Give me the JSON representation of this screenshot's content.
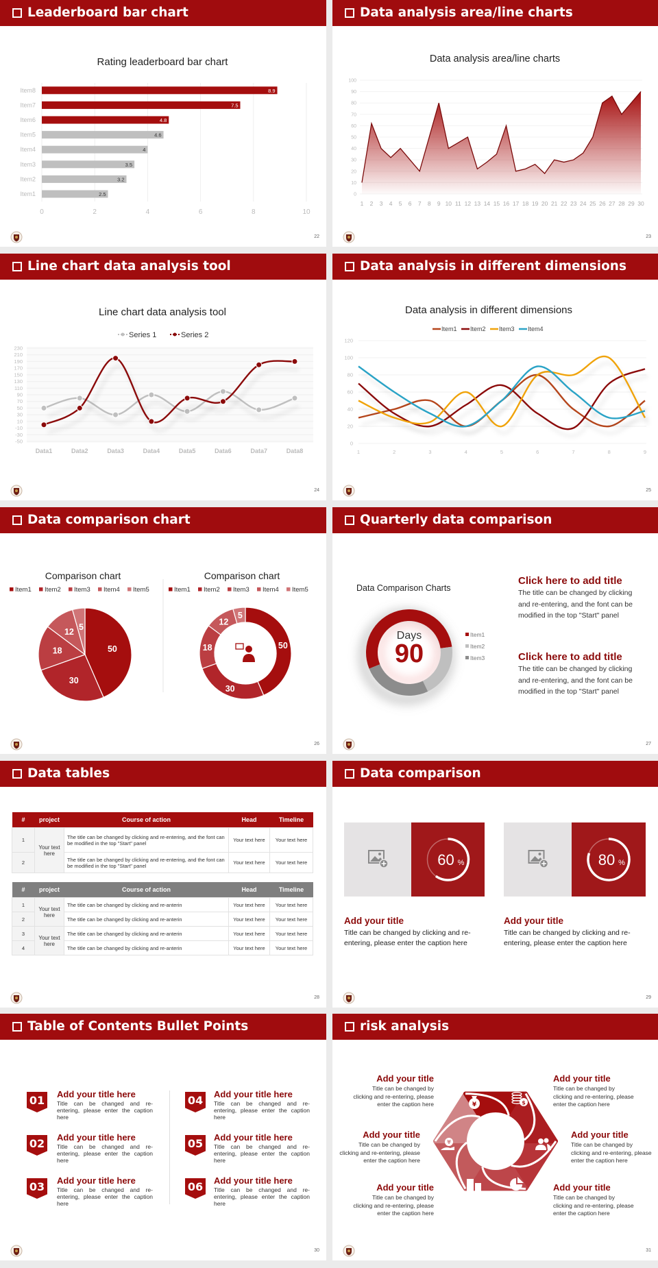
{
  "slides": [
    {
      "title": "Leaderboard bar chart",
      "page": "22"
    },
    {
      "title": "Data analysis area/line charts",
      "page": "23"
    },
    {
      "title": "Line chart data analysis tool",
      "page": "24"
    },
    {
      "title": "Data analysis in different dimensions",
      "page": "25"
    },
    {
      "title": "Data comparison chart",
      "page": "26"
    },
    {
      "title": "Quarterly data comparison",
      "page": "27"
    },
    {
      "title": "Data tables",
      "page": "28"
    },
    {
      "title": "Data comparison",
      "page": "29"
    },
    {
      "title": "Table of Contents Bullet Points",
      "page": "30"
    },
    {
      "title": "risk analysis",
      "page": "31"
    }
  ],
  "theme": {
    "accent": "#a00c0e",
    "dark_accent": "#8b0a0a",
    "gray": "#bfbfbf"
  },
  "chart_data": [
    {
      "type": "bar",
      "orientation": "horizontal",
      "title": "Rating leaderboard bar chart",
      "categories": [
        "Item1",
        "Item2",
        "Item3",
        "Item4",
        "Item5",
        "Item6",
        "Item7",
        "Item8"
      ],
      "values": [
        2.5,
        3.2,
        3.5,
        4,
        4.6,
        4.8,
        7.5,
        8.9
      ],
      "xlim": [
        0,
        10
      ],
      "xticks": [
        0,
        2,
        4,
        6,
        8,
        10
      ],
      "highlight_top": 3,
      "highlight_color": "#a50e0e",
      "base_color": "#bfbfbf",
      "grid": true
    },
    {
      "type": "area",
      "title": "Data analysis area/line charts",
      "x": [
        1,
        2,
        3,
        4,
        5,
        6,
        7,
        8,
        9,
        10,
        11,
        12,
        13,
        14,
        15,
        16,
        17,
        18,
        19,
        20,
        21,
        22,
        23,
        24,
        25,
        26,
        27,
        28,
        29,
        30
      ],
      "values": [
        10,
        62,
        40,
        32,
        40,
        30,
        20,
        50,
        80,
        40,
        45,
        50,
        22,
        28,
        35,
        60,
        20,
        22,
        26,
        18,
        30,
        28,
        30,
        36,
        50,
        80,
        86,
        70,
        80,
        90
      ],
      "ylim": [
        0,
        100
      ],
      "yticks": [
        0,
        10,
        20,
        30,
        40,
        50,
        60,
        70,
        80,
        90,
        100
      ],
      "color": "#a50e0e",
      "line_color": "#7a0a0a",
      "grid": true
    },
    {
      "type": "line",
      "smooth": true,
      "title": "Line chart data analysis tool",
      "categories": [
        "Data1",
        "Data2",
        "Data3",
        "Data4",
        "Data5",
        "Data6",
        "Data7",
        "Data8"
      ],
      "series": [
        {
          "name": "Series 1",
          "values": [
            50,
            80,
            30,
            90,
            40,
            100,
            45,
            80
          ],
          "color": "#bfbfbf"
        },
        {
          "name": "Series 2",
          "values": [
            0,
            50,
            200,
            10,
            80,
            70,
            180,
            190
          ],
          "color": "#8b0a0a"
        }
      ],
      "ylim": [
        -50,
        230
      ],
      "yticks": [
        -50,
        -30,
        -10,
        10,
        30,
        50,
        70,
        90,
        110,
        130,
        150,
        170,
        190,
        210,
        230
      ],
      "legend": "top",
      "grid": true
    },
    {
      "type": "line",
      "smooth": true,
      "title": "Data analysis in different dimensions",
      "x": [
        1,
        2,
        3,
        4,
        5,
        6,
        7,
        8,
        9
      ],
      "series": [
        {
          "name": "Item1",
          "values": [
            30,
            40,
            50,
            20,
            50,
            80,
            40,
            20,
            50
          ],
          "color": "#b5451b"
        },
        {
          "name": "Item2",
          "values": [
            70,
            35,
            20,
            45,
            68,
            35,
            18,
            70,
            87
          ],
          "color": "#8b0a0a"
        },
        {
          "name": "Item3",
          "values": [
            50,
            30,
            25,
            60,
            20,
            80,
            80,
            100,
            30
          ],
          "color": "#f0a30a"
        },
        {
          "name": "Item4",
          "values": [
            90,
            60,
            35,
            20,
            50,
            90,
            60,
            30,
            38
          ],
          "color": "#2aa3c6"
        }
      ],
      "ylim": [
        0,
        120
      ],
      "yticks": [
        0,
        20,
        40,
        60,
        80,
        100,
        120
      ],
      "legend": "top",
      "grid": true
    },
    {
      "type": "pie",
      "title": "Comparison chart",
      "categories": [
        "Item1",
        "Item2",
        "Item3",
        "Item4",
        "Item5"
      ],
      "values": [
        50,
        30,
        18,
        12,
        5
      ],
      "colors": [
        "#a50e0e",
        "#b1252a",
        "#bb3e42",
        "#c5585b",
        "#d07577"
      ],
      "legend": "top"
    },
    {
      "type": "pie",
      "donut": true,
      "title": "Comparison chart",
      "categories": [
        "Item1",
        "Item2",
        "Item3",
        "Item4",
        "Item5"
      ],
      "values": [
        50,
        30,
        18,
        12,
        5
      ],
      "colors": [
        "#a50e0e",
        "#b1252a",
        "#bb3e42",
        "#c5585b",
        "#d07577"
      ],
      "legend": "top",
      "center_icon": "presenter-icon"
    },
    {
      "type": "pie",
      "donut": true,
      "title": "Data Comparison Charts",
      "categories": [
        "Item1",
        "Item2",
        "Item3"
      ],
      "values": [
        54,
        20,
        26
      ],
      "colors": [
        "#a50e0e",
        "#bfbfbf",
        "#8c8c8c"
      ],
      "center_label": "Days",
      "center_value": "90",
      "legend": "right"
    }
  ],
  "quarterly": {
    "blocks": [
      {
        "title": "Click here to add title",
        "body": "The title can be changed by clicking and re-entering, and the font can be modified in the top \"Start\" panel"
      },
      {
        "title": "Click here to add title",
        "body": "The title can be changed by clicking and re-entering, and the font can be modified in the top \"Start\" panel"
      }
    ]
  },
  "tables": [
    {
      "headers": [
        "#",
        "project",
        "Course of action",
        "Head",
        "Timeline"
      ],
      "project_groups": [
        "Your text here"
      ],
      "rows": [
        {
          "num": "1",
          "action": " The title can be changed by clicking and re-entering, and the font can be modified in the top \"Start\" panel",
          "head": "Your text here",
          "timeline": "Your text here"
        },
        {
          "num": "2",
          "action": "The title can be changed by clicking and re-entering, and the font can be modified in the top \"Start\" panel",
          "head": "Your text here",
          "timeline": "Your text here"
        }
      ]
    },
    {
      "headers": [
        "#",
        "project",
        "Course of action",
        "Head",
        "Timeline"
      ],
      "project_groups": [
        "Your text here",
        "Your text here"
      ],
      "rows": [
        {
          "num": "1",
          "action": "The title can be changed by clicking and re-anterin",
          "head": "Your text here",
          "timeline": "Your text here"
        },
        {
          "num": "2",
          "action": "The title can be changed by clicking and re-anterin",
          "head": "Your text here",
          "timeline": "Your text here"
        },
        {
          "num": "3",
          "action": "The title can be changed by clicking and re-anterin",
          "head": "Your text here",
          "timeline": "Your text here"
        },
        {
          "num": "4",
          "action": "The title can be changed by clicking and re-anterin",
          "head": "Your text here",
          "timeline": "Your text here"
        }
      ]
    }
  ],
  "data_comparison": {
    "cards": [
      {
        "percent": 60,
        "value": "60",
        "unit": "%",
        "image_icon": "add-image-icon",
        "title": "Add your title",
        "body": "Title can be changed by clicking and re-entering, please enter the caption here"
      },
      {
        "percent": 80,
        "value": "80",
        "unit": "%",
        "image_icon": "add-image-icon",
        "title": "Add your title",
        "body": "Title can be changed by clicking and re-entering, please enter the caption here"
      }
    ]
  },
  "toc": {
    "items": [
      {
        "num": "01",
        "title": "Add your title here",
        "body": "Title can be changed and re-entering, please enter the caption here"
      },
      {
        "num": "02",
        "title": "Add your title here",
        "body": "Title can be changed and re-entering, please enter the caption here"
      },
      {
        "num": "03",
        "title": "Add your title here",
        "body": "Title can be changed and re-entering, please enter the caption here"
      },
      {
        "num": "04",
        "title": "Add your title here",
        "body": "Title can be changed and re-entering, please enter the caption here"
      },
      {
        "num": "05",
        "title": "Add your title here",
        "body": "Title can be changed and re-entering, please enter the caption here"
      },
      {
        "num": "06",
        "title": "Add your title here",
        "body": "Title can be changed and re-entering, please enter the caption here"
      }
    ]
  },
  "risk": {
    "items": [
      {
        "title": "Add your title",
        "body": "Title can be changed by clicking and re-entering, please enter the caption here",
        "icon": "money-bag-icon"
      },
      {
        "title": "Add your title",
        "body": "Title can be changed by clicking and re-entering, please enter the caption here",
        "icon": "coins-icon"
      },
      {
        "title": "Add your title",
        "body": "Title can be changed by clicking and re-entering, please enter the caption here",
        "icon": "yen-hand-icon"
      },
      {
        "title": "Add your title",
        "body": "Title can be changed by clicking and re-entering, please enter the caption here",
        "icon": "people-icon"
      },
      {
        "title": "Add your title",
        "body": "Title can be changed by clicking and re-entering, please enter the caption here",
        "icon": "building-icon"
      },
      {
        "title": "Add your title",
        "body": "Title can be changed by clicking and re-entering, please enter the caption here",
        "icon": "pie-chart-icon"
      }
    ]
  }
}
